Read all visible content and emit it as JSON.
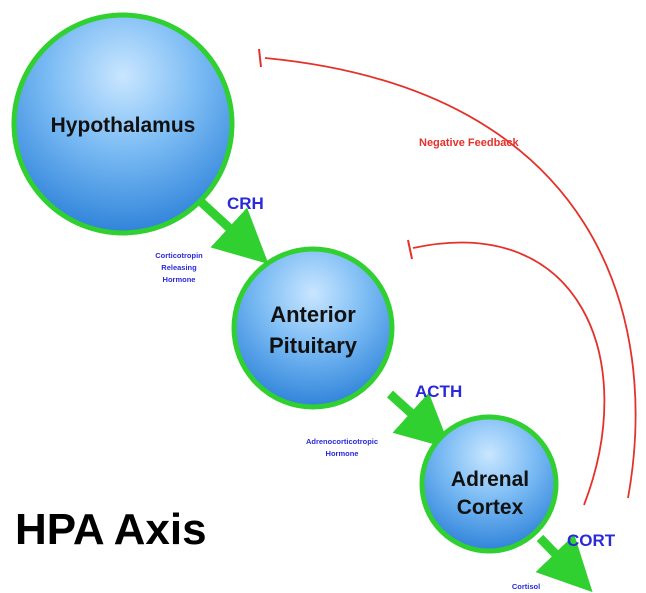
{
  "title": "HPA Axis",
  "feedback_label": "Negative Feedback",
  "nodes": {
    "hypothalamus": {
      "label": "Hypothalamus"
    },
    "anterior_pituitary": {
      "line1": "Anterior",
      "line2": "Pituitary"
    },
    "adrenal_cortex": {
      "line1": "Adrenal",
      "line2": "Cortex"
    }
  },
  "hormones": {
    "crh": {
      "abbr": "CRH",
      "full": [
        "Corticotropin",
        "Releasing",
        "Hormone"
      ]
    },
    "acth": {
      "abbr": "ACTH",
      "full": [
        "Adrenocorticotropic",
        "Hormone"
      ]
    },
    "cort": {
      "abbr": "CORT",
      "full": [
        "Cortisol"
      ]
    }
  },
  "colors": {
    "node_fill_top": "#b3dbff",
    "node_fill_bottom": "#2f86e0",
    "node_stroke": "#2fd02f",
    "arrow": "#2fd02f",
    "feedback": "#e4322b",
    "hormone_text": "#2a2ad8"
  }
}
